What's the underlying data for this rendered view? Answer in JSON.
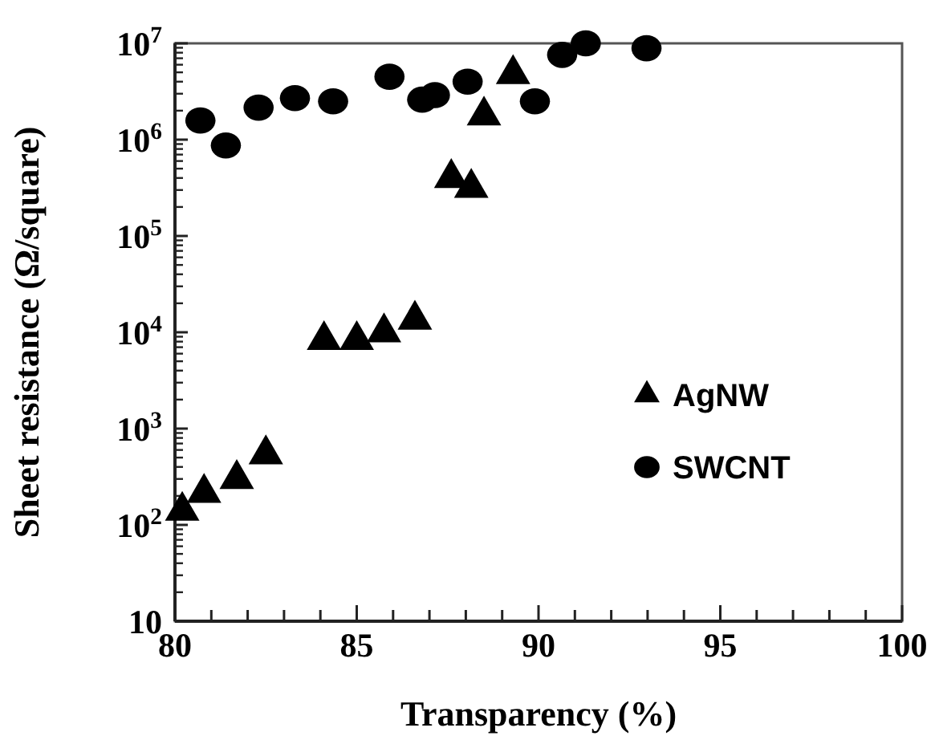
{
  "chart_data": {
    "type": "scatter",
    "xlabel": "Transparency (%)",
    "ylabel": "Sheet resistance  (Ω/square)",
    "log": "y",
    "xlim": [
      80,
      100
    ],
    "xticks": [
      80,
      {
        "value": 81,
        "label": null
      },
      {
        "value": 82,
        "label": null
      },
      {
        "value": 83,
        "label": null
      },
      {
        "value": 84,
        "label": null
      },
      85,
      {
        "value": 86,
        "label": null
      },
      {
        "value": 87,
        "label": null
      },
      {
        "value": 88,
        "label": null
      },
      {
        "value": 89,
        "label": null
      },
      90,
      {
        "value": 91,
        "label": null
      },
      {
        "value": 92,
        "label": null
      },
      {
        "value": 93,
        "label": null
      },
      {
        "value": 94,
        "label": null
      },
      95,
      {
        "value": 96,
        "label": null
      },
      {
        "value": 97,
        "label": null
      },
      {
        "value": 98,
        "label": null
      },
      {
        "value": 99,
        "label": null
      },
      100
    ],
    "ylim": [
      10,
      10000000
    ],
    "yticks": [
      10,
      {
        "value": 100,
        "label": "10$^{2}$"
      },
      {
        "value": 1000,
        "label": "10$^{3}$"
      },
      {
        "value": 10000,
        "label": "10$^{4}$"
      },
      {
        "value": 100000,
        "label": "10$^{5}$"
      },
      {
        "value": 1000000,
        "label": "10$^{6}$"
      },
      {
        "value": 10000000,
        "label": "10$^{7}$"
      }
    ],
    "legend": "right",
    "grid": false,
    "series": [
      {
        "name": "AgNW",
        "color": "#000000",
        "marker": "triangle",
        "x": [
          80.2,
          80.8,
          81.7,
          82.5,
          84.1,
          85.0,
          85.75,
          86.6,
          87.6,
          88.15,
          88.5,
          89.3
        ],
        "values": [
          140,
          215,
          300,
          540,
          8300,
          8300,
          10000,
          13500,
          400000,
          316000,
          1780000,
          4800000
        ]
      },
      {
        "name": "SWCNT",
        "color": "#000000",
        "marker": "circle",
        "x": [
          80.7,
          81.4,
          82.3,
          83.3,
          84.35,
          85.9,
          86.8,
          87.15,
          88.05,
          89.9,
          90.65,
          91.3,
          92.97
        ],
        "values": [
          1580000,
          870000,
          2150000,
          2700000,
          2500000,
          4500000,
          2600000,
          2900000,
          4000000,
          2500000,
          7600000,
          10000000,
          8900000
        ]
      }
    ]
  }
}
